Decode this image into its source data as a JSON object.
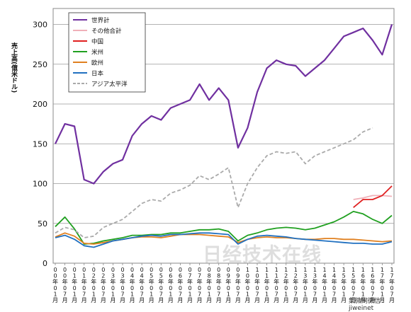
{
  "chart_data": {
    "type": "line",
    "title": "",
    "ylabel": "売上高(億米ドル)",
    "xlabel": "",
    "ylim": [
      0,
      320
    ],
    "yticks": [
      0,
      50,
      100,
      150,
      200,
      250,
      300
    ],
    "grid": true,
    "legend_position": "top-left",
    "x_ticks": [
      "00年01月",
      "00年07月",
      "01年01月",
      "01年07月",
      "02年01月",
      "02年07月",
      "03年01月",
      "03年07月",
      "04年01月",
      "04年07月",
      "05年01月",
      "05年07月",
      "06年01月",
      "06年07月",
      "07年01月",
      "07年07月",
      "08年01月",
      "08年07月",
      "09年01月",
      "09年07月",
      "10年01月",
      "10年07月",
      "11年01月",
      "11年07月",
      "12年01月",
      "12年07月",
      "13年01月",
      "13年07月",
      "14年01月",
      "14年07月",
      "15年01月",
      "15年07月",
      "16年01月",
      "16年07月",
      "17年01月",
      "17年07月"
    ],
    "series": [
      {
        "name": "世界計",
        "color": "#7030a0",
        "dash": false,
        "x": [
          0,
          1,
          2,
          3,
          4,
          5,
          6,
          7,
          8,
          9,
          10,
          11,
          12,
          13,
          14,
          15,
          16,
          17,
          18,
          19,
          20,
          21,
          22,
          23,
          24,
          25,
          26,
          27,
          28,
          29,
          30,
          31,
          32,
          33,
          34,
          35
        ],
        "y": [
          150,
          175,
          172,
          105,
          100,
          115,
          125,
          130,
          160,
          175,
          185,
          180,
          195,
          200,
          205,
          225,
          205,
          220,
          205,
          145,
          170,
          215,
          245,
          255,
          250,
          248,
          235,
          245,
          255,
          270,
          285,
          290,
          295,
          280,
          262,
          300
        ]
      },
      {
        "name": "その他合計",
        "color": "#f0b0b8",
        "dash": false,
        "x": [
          31,
          32,
          33,
          34,
          35
        ],
        "y": [
          80,
          82,
          85,
          85,
          84
        ]
      },
      {
        "name": "中国",
        "color": "#e02020",
        "dash": false,
        "x": [
          31,
          32,
          33,
          34,
          35
        ],
        "y": [
          70,
          80,
          80,
          85,
          97
        ]
      },
      {
        "name": "米州",
        "color": "#20a020",
        "dash": false,
        "x": [
          0,
          1,
          2,
          3,
          4,
          5,
          6,
          7,
          8,
          9,
          10,
          11,
          12,
          13,
          14,
          15,
          16,
          17,
          18,
          19,
          20,
          21,
          22,
          23,
          24,
          25,
          26,
          27,
          28,
          29,
          30,
          31,
          32,
          33,
          34,
          35
        ],
        "y": [
          46,
          58,
          43,
          24,
          25,
          28,
          30,
          32,
          35,
          35,
          36,
          36,
          38,
          38,
          40,
          42,
          42,
          43,
          40,
          28,
          35,
          38,
          42,
          44,
          45,
          44,
          42,
          44,
          48,
          52,
          58,
          65,
          62,
          55,
          50,
          60
        ]
      },
      {
        "name": "欧州",
        "color": "#e08020",
        "dash": false,
        "x": [
          0,
          1,
          2,
          3,
          4,
          5,
          6,
          7,
          8,
          9,
          10,
          11,
          12,
          13,
          14,
          15,
          16,
          17,
          18,
          19,
          20,
          21,
          22,
          23,
          24,
          25,
          26,
          27,
          28,
          29,
          30,
          31,
          32,
          33,
          34,
          35
        ],
        "y": [
          33,
          38,
          34,
          25,
          24,
          26,
          28,
          30,
          32,
          33,
          33,
          32,
          34,
          36,
          36,
          36,
          35,
          34,
          33,
          26,
          30,
          32,
          33,
          32,
          32,
          31,
          30,
          30,
          31,
          31,
          30,
          30,
          29,
          28,
          27,
          28
        ]
      },
      {
        "name": "日本",
        "color": "#2070c0",
        "dash": false,
        "x": [
          0,
          1,
          2,
          3,
          4,
          5,
          6,
          7,
          8,
          9,
          10,
          11,
          12,
          13,
          14,
          15,
          16,
          17,
          18,
          19,
          20,
          21,
          22,
          23,
          24,
          25,
          26,
          27,
          28,
          29,
          30,
          31,
          32,
          33,
          34,
          35
        ],
        "y": [
          32,
          35,
          30,
          22,
          20,
          24,
          28,
          30,
          32,
          34,
          35,
          34,
          36,
          36,
          37,
          38,
          38,
          37,
          36,
          24,
          30,
          34,
          35,
          34,
          33,
          31,
          30,
          29,
          28,
          27,
          26,
          25,
          25,
          24,
          24,
          27
        ]
      },
      {
        "name": "アジア太平洋",
        "color": "#aaaaaa",
        "dash": true,
        "x": [
          0,
          1,
          2,
          3,
          4,
          5,
          6,
          7,
          8,
          9,
          10,
          11,
          12,
          13,
          14,
          15,
          16,
          17,
          18,
          19,
          20,
          21,
          22,
          23,
          24,
          25,
          26,
          27,
          28,
          29,
          30,
          31,
          32,
          33
        ],
        "y": [
          38,
          45,
          42,
          32,
          34,
          45,
          50,
          55,
          65,
          75,
          80,
          78,
          88,
          92,
          98,
          110,
          105,
          112,
          120,
          70,
          100,
          120,
          135,
          140,
          138,
          140,
          125,
          135,
          140,
          145,
          150,
          155,
          165,
          170
        ]
      }
    ]
  },
  "watermark": {
    "main": "日经技术在线",
    "sub": "集微网微信：jiweinet"
  }
}
